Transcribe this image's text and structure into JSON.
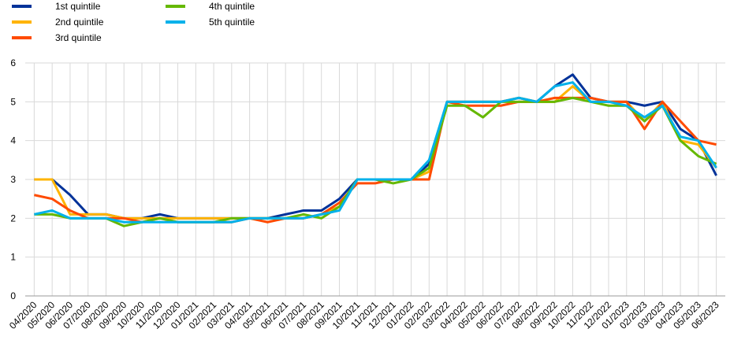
{
  "chart_data": {
    "type": "line",
    "categories": [
      "04/2020",
      "05/2020",
      "06/2020",
      "07/2020",
      "08/2020",
      "09/2020",
      "10/2020",
      "11/2020",
      "12/2020",
      "01/2021",
      "02/2021",
      "03/2021",
      "04/2021",
      "05/2021",
      "06/2021",
      "07/2021",
      "08/2021",
      "09/2021",
      "10/2021",
      "11/2021",
      "12/2021",
      "01/2022",
      "02/2022",
      "03/2022",
      "04/2022",
      "05/2022",
      "06/2022",
      "07/2022",
      "08/2022",
      "09/2022",
      "10/2022",
      "11/2022",
      "12/2022",
      "01/2023",
      "02/2023",
      "03/2023",
      "04/2023",
      "05/2023",
      "06/2023"
    ],
    "series": [
      {
        "name": "1st quintile",
        "color": "#003299",
        "values": [
          3,
          3,
          2.6,
          2.1,
          2.1,
          2.0,
          2.0,
          2.1,
          2.0,
          2.0,
          2.0,
          2.0,
          2.0,
          2.0,
          2.1,
          2.2,
          2.2,
          2.5,
          3.0,
          3.0,
          3.0,
          3.0,
          3.4,
          5.0,
          5.0,
          5.0,
          5.0,
          5.1,
          5.0,
          5.4,
          5.7,
          5.1,
          5.0,
          5.0,
          4.9,
          5.0,
          4.3,
          4.0,
          3.1
        ]
      },
      {
        "name": "2nd quintile",
        "color": "#ffb400",
        "values": [
          3,
          3,
          2.1,
          2.1,
          2.1,
          2.0,
          2.0,
          2.0,
          2.0,
          2.0,
          2.0,
          2.0,
          2.0,
          2.0,
          2.0,
          2.0,
          2.1,
          2.3,
          3.0,
          3.0,
          3.0,
          3.0,
          3.2,
          5.0,
          5.0,
          5.0,
          5.0,
          5.1,
          5.0,
          5.0,
          5.4,
          5.0,
          5.0,
          5.0,
          4.5,
          5.0,
          4.0,
          3.9,
          3.3
        ]
      },
      {
        "name": "3rd quintile",
        "color": "#ff4b00",
        "values": [
          2.6,
          2.5,
          2.2,
          2.0,
          2.0,
          2.0,
          1.9,
          2.0,
          1.9,
          1.9,
          1.9,
          1.9,
          2.0,
          1.9,
          2.0,
          2.0,
          2.1,
          2.4,
          2.9,
          2.9,
          3.0,
          3.0,
          3.0,
          5.0,
          4.9,
          4.9,
          4.9,
          5.0,
          5.0,
          5.1,
          5.1,
          5.1,
          5.0,
          5.0,
          4.3,
          5.0,
          4.5,
          4.0,
          3.9
        ]
      },
      {
        "name": "4th quintile",
        "color": "#65b800",
        "values": [
          2.1,
          2.1,
          2.0,
          2.0,
          2.0,
          1.8,
          1.9,
          2.0,
          1.9,
          1.9,
          1.9,
          2.0,
          2.0,
          2.0,
          2.0,
          2.1,
          2.0,
          2.3,
          3.0,
          3.0,
          2.9,
          3.0,
          3.3,
          4.9,
          4.9,
          4.6,
          5.0,
          5.0,
          5.0,
          5.0,
          5.1,
          5.0,
          4.9,
          4.9,
          4.5,
          4.9,
          4.0,
          3.6,
          3.4
        ]
      },
      {
        "name": "5th quintile",
        "color": "#00b1ea",
        "values": [
          2.1,
          2.2,
          2.0,
          2.0,
          2.0,
          1.9,
          1.9,
          1.9,
          1.9,
          1.9,
          1.9,
          1.9,
          2.0,
          2.0,
          2.0,
          2.0,
          2.1,
          2.2,
          3.0,
          3.0,
          3.0,
          3.0,
          3.5,
          5.0,
          5.0,
          5.0,
          5.0,
          5.1,
          5.0,
          5.4,
          5.5,
          5.0,
          5.0,
          4.9,
          4.6,
          4.9,
          4.1,
          4.0,
          3.3
        ]
      }
    ],
    "ylim": [
      0,
      6
    ],
    "yticks": [
      0,
      1,
      2,
      3,
      4,
      5,
      6
    ],
    "grid": true
  }
}
